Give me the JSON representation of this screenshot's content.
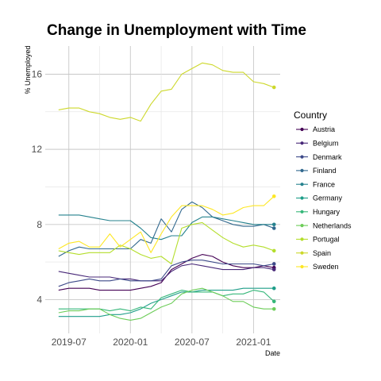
{
  "chart_data": {
    "type": "line",
    "title": "Change in Unemployment with Time",
    "xlabel": "Date",
    "ylabel": "% Unemployed",
    "x_ticks": [
      "2019-07",
      "2020-01",
      "2020-07",
      "2021-01"
    ],
    "y_ticks": [
      4,
      8,
      12,
      16
    ],
    "xlim": [
      -1.3,
      21.6
    ],
    "ylim": [
      2.2,
      17.5
    ],
    "grid": true,
    "legend": {
      "title": "Country",
      "position": "right"
    },
    "months": [
      "2019-06",
      "2019-07",
      "2019-08",
      "2019-09",
      "2019-10",
      "2019-11",
      "2019-12",
      "2020-01",
      "2020-02",
      "2020-03",
      "2020-04",
      "2020-05",
      "2020-06",
      "2020-07",
      "2020-08",
      "2020-09",
      "2020-10",
      "2020-11",
      "2020-12",
      "2021-01",
      "2021-02",
      "2021-03"
    ],
    "series": [
      {
        "name": "Austria",
        "color": "#440154",
        "values": [
          4.5,
          4.6,
          4.6,
          4.6,
          4.5,
          4.5,
          4.5,
          4.5,
          4.6,
          4.7,
          4.9,
          5.6,
          5.9,
          6.2,
          6.4,
          6.3,
          6.0,
          5.8,
          5.7,
          5.7,
          5.8,
          5.7
        ]
      },
      {
        "name": "Belgium",
        "color": "#482878",
        "values": [
          5.5,
          5.4,
          5.3,
          5.2,
          5.2,
          5.2,
          5.1,
          5.1,
          5.0,
          5.0,
          5.0,
          5.5,
          5.8,
          5.9,
          5.8,
          5.7,
          5.6,
          5.6,
          5.6,
          5.7,
          5.7,
          5.6
        ]
      },
      {
        "name": "Denmark",
        "color": "#3E4A89",
        "values": [
          4.7,
          4.9,
          5.0,
          5.1,
          5.0,
          5.0,
          5.1,
          5.0,
          5.0,
          5.0,
          5.1,
          5.8,
          6.0,
          6.1,
          6.1,
          6.0,
          5.9,
          5.9,
          5.9,
          5.9,
          5.8,
          5.9
        ]
      },
      {
        "name": "Finland",
        "color": "#31688E",
        "values": [
          6.3,
          6.6,
          6.8,
          6.7,
          6.7,
          6.7,
          6.7,
          6.7,
          7.2,
          7.0,
          8.3,
          7.6,
          8.8,
          9.2,
          8.9,
          8.4,
          8.2,
          8.0,
          7.9,
          7.9,
          8.0,
          7.8
        ]
      },
      {
        "name": "France",
        "color": "#26828E",
        "values": [
          8.5,
          8.5,
          8.5,
          8.4,
          8.3,
          8.2,
          8.2,
          8.2,
          7.8,
          7.3,
          7.2,
          7.4,
          7.4,
          8.1,
          8.4,
          8.4,
          8.3,
          8.2,
          8.1,
          8.0,
          8.0,
          8.0
        ]
      },
      {
        "name": "Germany",
        "color": "#1F9E89",
        "values": [
          3.1,
          3.1,
          3.1,
          3.1,
          3.1,
          3.2,
          3.2,
          3.3,
          3.5,
          3.8,
          4.0,
          4.2,
          4.4,
          4.4,
          4.5,
          4.5,
          4.5,
          4.5,
          4.6,
          4.6,
          4.6,
          4.6
        ]
      },
      {
        "name": "Hungary",
        "color": "#35B779",
        "values": [
          3.5,
          3.5,
          3.5,
          3.5,
          3.5,
          3.4,
          3.5,
          3.4,
          3.6,
          3.5,
          4.1,
          4.3,
          4.5,
          4.4,
          4.4,
          4.4,
          4.2,
          4.3,
          4.3,
          4.5,
          4.4,
          3.9
        ]
      },
      {
        "name": "Netherlands",
        "color": "#6DCD59",
        "values": [
          3.3,
          3.4,
          3.4,
          3.5,
          3.5,
          3.2,
          3.0,
          2.9,
          3.0,
          3.3,
          3.6,
          3.8,
          4.3,
          4.5,
          4.6,
          4.4,
          4.2,
          3.9,
          3.9,
          3.6,
          3.5,
          3.5
        ]
      },
      {
        "name": "Portugal",
        "color": "#B4DE2C",
        "values": [
          6.6,
          6.5,
          6.4,
          6.5,
          6.5,
          6.5,
          6.9,
          6.7,
          6.4,
          6.2,
          6.3,
          5.9,
          7.8,
          8.0,
          8.1,
          7.7,
          7.3,
          7.0,
          6.8,
          6.9,
          6.8,
          6.6
        ]
      },
      {
        "name": "Spain",
        "color": "#CDD82B",
        "values": [
          14.1,
          14.2,
          14.2,
          14.0,
          13.9,
          13.7,
          13.6,
          13.7,
          13.5,
          14.4,
          15.1,
          15.2,
          16.0,
          16.3,
          16.6,
          16.5,
          16.2,
          16.1,
          16.1,
          15.6,
          15.5,
          15.3
        ]
      },
      {
        "name": "Sweden",
        "color": "#FDE725",
        "values": [
          6.7,
          7.0,
          7.1,
          6.8,
          6.8,
          7.5,
          6.8,
          7.2,
          7.6,
          6.5,
          7.5,
          8.4,
          9.0,
          9.0,
          9.0,
          8.8,
          8.5,
          8.6,
          8.9,
          9.0,
          9.0,
          9.5
        ]
      }
    ]
  }
}
